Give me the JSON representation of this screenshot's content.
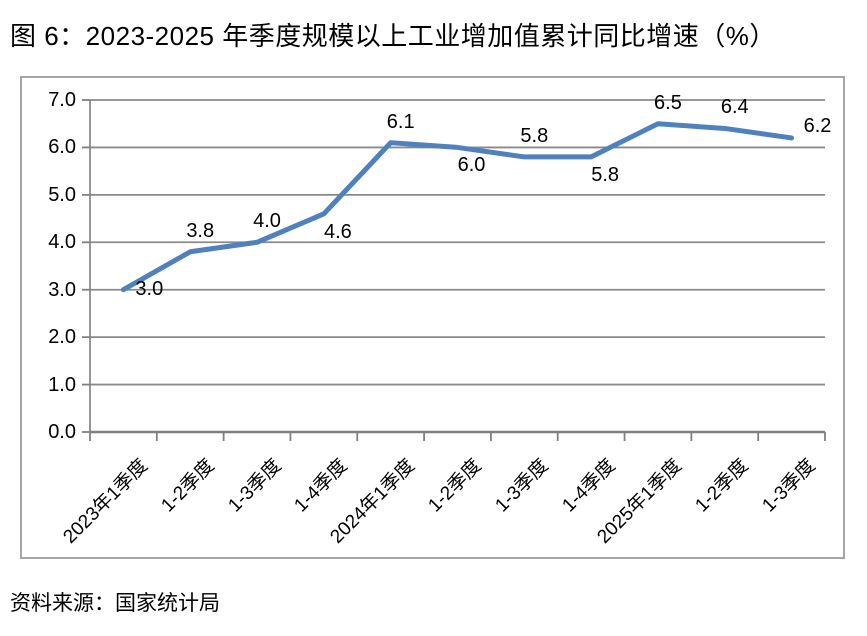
{
  "title": "图 6：2023-2025 年季度规模以上工业增加值累计同比增速（%）",
  "source": "资料来源：国家统计局",
  "chart_data": {
    "type": "line",
    "title": "图 6：2023-2025 年季度规模以上工业增加值累计同比增速（%）",
    "categories": [
      "2023年1季度",
      "1-2季度",
      "1-3季度",
      "1-4季度",
      "2024年1季度",
      "1-2季度",
      "1-3季度",
      "1-4季度",
      "2025年1季度",
      "1-2季度",
      "1-3季度"
    ],
    "values": [
      3.0,
      3.8,
      4.0,
      4.6,
      6.1,
      6.0,
      5.8,
      5.8,
      6.5,
      6.4,
      6.2
    ],
    "point_labels": [
      "3.0",
      "3.8",
      "4.0",
      "4.6",
      "6.1",
      "6.0",
      "5.8",
      "5.8",
      "6.5",
      "6.4",
      "6.2"
    ],
    "label_sides": [
      "right",
      "above",
      "above",
      "below",
      "above",
      "below",
      "above",
      "below",
      "above",
      "above",
      "right-up"
    ],
    "xlabel": "",
    "ylabel": "",
    "ylim": [
      0.0,
      7.0
    ],
    "ytick_step": 1.0,
    "yticks": [
      "7.0",
      "6.0",
      "5.0",
      "4.0",
      "3.0",
      "2.0",
      "1.0",
      "0.0"
    ],
    "grid": true,
    "legend": false,
    "line_color": "#4F81BD",
    "grid_color": "#8a8a8a",
    "axis_color": "#808080",
    "frame_color": "#a6a6a6",
    "label_color": "#000000"
  }
}
